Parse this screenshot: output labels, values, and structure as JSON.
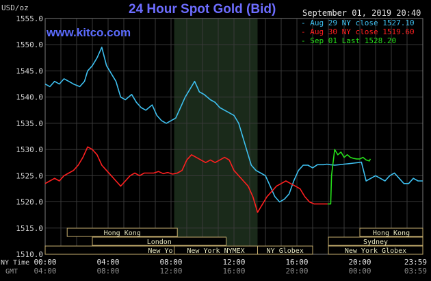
{
  "header": {
    "title": "24 Hour Spot Gold (Bid)",
    "unit": "USD/oz",
    "datetime": "September 01, 2019 20:40",
    "watermark": "www.kitco.com"
  },
  "colors": {
    "background": "#000000",
    "grid": "#3a3a3a",
    "closed_shade": "#1a2a1a",
    "aug29": "#3ec0f0",
    "aug30": "#ff2020",
    "sep01": "#26e01a",
    "title": "#6d6dff",
    "session_box": "#e8e8c0",
    "session_border": "#c8b070"
  },
  "legend": [
    {
      "label": "- Aug 29 NY close 1527.10",
      "color": "#3ec0f0"
    },
    {
      "label": "- Aug 30 NY close 1519.60",
      "color": "#ff2020"
    },
    {
      "label": "- Sep 01 Last 1528.20",
      "color": "#26e01a"
    }
  ],
  "time_axis": {
    "row1_label": "NY Time",
    "row2_label": "GMT",
    "ny_ticks": [
      "00:00",
      "04:00",
      "08:00",
      "12:00",
      "16:00",
      "20:00",
      "23:59"
    ],
    "gmt_ticks": [
      "04:00",
      "08:00",
      "12:00",
      "16:00",
      "20:00",
      "00:00",
      "03:59"
    ]
  },
  "sessions": [
    {
      "label": "Hong Kong",
      "row": 0,
      "start": 1.4,
      "end": 8.4
    },
    {
      "label": "London",
      "row": 1,
      "start": 3.0,
      "end": 11.5
    },
    {
      "label": "New York Globex",
      "row": 2,
      "start": 0.0,
      "end": 17.0
    },
    {
      "label": "New York NYMEX",
      "row": 2,
      "start": 8.2,
      "end": 13.5
    },
    {
      "label": "NY Globex",
      "row": 2,
      "start": 13.5,
      "end": 17.0
    },
    {
      "label": "Hong Kong",
      "row": 0,
      "start": 20.0,
      "end": 24.0
    },
    {
      "label": "Sydney",
      "row": 1,
      "start": 18.0,
      "end": 24.0
    },
    {
      "label": "New York Globex",
      "row": 2,
      "start": 18.0,
      "end": 24.0
    }
  ],
  "chart_data": {
    "type": "line",
    "title": "24 Hour Spot Gold (Bid)",
    "ylabel": "USD/oz",
    "xlim": [
      0,
      24
    ],
    "ylim": [
      1510,
      1555
    ],
    "yticks": [
      1510,
      1515,
      1520,
      1525,
      1530,
      1535,
      1540,
      1545,
      1550,
      1555
    ],
    "ytick_labels": [
      "1510.0",
      "1515.0",
      "1520.0",
      "1525.0",
      "1530.0",
      "1535.0",
      "1540.0",
      "1545.0",
      "1550.0",
      "1555.0"
    ],
    "grid": true,
    "series": [
      {
        "name": "Aug 29",
        "color": "#3ec0f0",
        "x": [
          0,
          0.3,
          0.6,
          0.9,
          1.2,
          1.5,
          1.8,
          2.2,
          2.5,
          2.7,
          3.0,
          3.3,
          3.6,
          3.9,
          4.2,
          4.5,
          4.8,
          5.1,
          5.5,
          5.8,
          6.1,
          6.4,
          6.8,
          7.1,
          7.4,
          7.7,
          8.0,
          8.3,
          8.6,
          8.9,
          9.2,
          9.5,
          9.8,
          10.1,
          10.5,
          10.8,
          11.1,
          11.4,
          11.7,
          12.0,
          12.3,
          12.6,
          12.9,
          13.1,
          13.4,
          13.7,
          14.0,
          14.3,
          14.6,
          14.9,
          15.2,
          15.5,
          15.8,
          16.1,
          16.4,
          16.7,
          17.0,
          17.3,
          17.7,
          17.9,
          18.1,
          18.4,
          18.7,
          19.0,
          19.3,
          19.6,
          19.9,
          20.1,
          20.4,
          20.7,
          21.0,
          21.3,
          21.6,
          21.9,
          22.2,
          22.5,
          22.8,
          23.1,
          23.4,
          23.7,
          23.99
        ],
        "y": [
          1542.5,
          1542,
          1543,
          1542.5,
          1543.5,
          1543,
          1542.5,
          1542,
          1543,
          1545,
          1546,
          1547.5,
          1549.5,
          1546,
          1544.5,
          1543,
          1540,
          1539.5,
          1540.5,
          1539,
          1538,
          1537.5,
          1538.5,
          1536.5,
          1535.5,
          1535,
          1535.5,
          1536,
          1538,
          1540,
          1541.5,
          1543,
          1541,
          1540.5,
          1539.5,
          1539,
          1538,
          1537.5,
          1537,
          1536.5,
          1535,
          1532,
          1529,
          1527,
          1526,
          1525.5,
          1525,
          1523,
          1521,
          1520,
          1520.5,
          1521.5,
          1524,
          1526,
          1527,
          1527,
          1526.5,
          1527.1,
          1527.1,
          1527.2,
          1527.1,
          1527,
          1527.1,
          1527.2,
          1527.3,
          1527.4,
          1527.5,
          1527.6,
          1524,
          1524.5,
          1525,
          1524.5,
          1524,
          1525,
          1525.5,
          1524.5,
          1523.5,
          1523.5,
          1524.5,
          1524,
          1524
        ]
      },
      {
        "name": "Aug 30",
        "color": "#ff2020",
        "x": [
          0,
          0.3,
          0.6,
          0.9,
          1.2,
          1.5,
          1.8,
          2.1,
          2.4,
          2.7,
          3.0,
          3.3,
          3.6,
          3.9,
          4.2,
          4.5,
          4.8,
          5.1,
          5.4,
          5.7,
          6.0,
          6.3,
          6.6,
          6.9,
          7.2,
          7.5,
          7.8,
          8.1,
          8.4,
          8.7,
          9.0,
          9.3,
          9.6,
          9.9,
          10.2,
          10.5,
          10.8,
          11.1,
          11.4,
          11.7,
          12.0,
          12.3,
          12.6,
          12.9,
          13.2,
          13.5,
          13.8,
          14.1,
          14.4,
          14.7,
          15.0,
          15.3,
          15.6,
          15.9,
          16.2,
          16.5,
          16.8,
          17.1,
          17.4,
          17.7,
          17.95
        ],
        "y": [
          1523.5,
          1524,
          1524.5,
          1524,
          1525,
          1525.5,
          1526,
          1527,
          1528.5,
          1530.5,
          1530,
          1529,
          1527,
          1526,
          1525,
          1524,
          1523,
          1524,
          1525,
          1525.5,
          1525,
          1525.5,
          1525.5,
          1525.5,
          1525.8,
          1525.4,
          1525.6,
          1525.3,
          1525.5,
          1526,
          1528,
          1529,
          1528.5,
          1528,
          1527.5,
          1528,
          1527.5,
          1528,
          1528.5,
          1528,
          1526,
          1525,
          1524,
          1523,
          1521,
          1518,
          1519.5,
          1521,
          1522,
          1523,
          1523.5,
          1524,
          1523.5,
          1523,
          1522.5,
          1521,
          1520,
          1519.6,
          1519.6,
          1519.6,
          1519.6
        ]
      },
      {
        "name": "Sep 01",
        "color": "#26e01a",
        "x": [
          17.95,
          18.15,
          18.2,
          18.4,
          18.6,
          18.8,
          19.0,
          19.2,
          19.4,
          19.6,
          19.8,
          20.0,
          20.2,
          20.4,
          20.6,
          20.67
        ],
        "y": [
          1519.6,
          1519.6,
          1525,
          1530,
          1529,
          1529.5,
          1528.5,
          1529,
          1528.5,
          1528.3,
          1528.2,
          1528.2,
          1528.5,
          1528,
          1527.8,
          1528.2
        ]
      }
    ]
  }
}
